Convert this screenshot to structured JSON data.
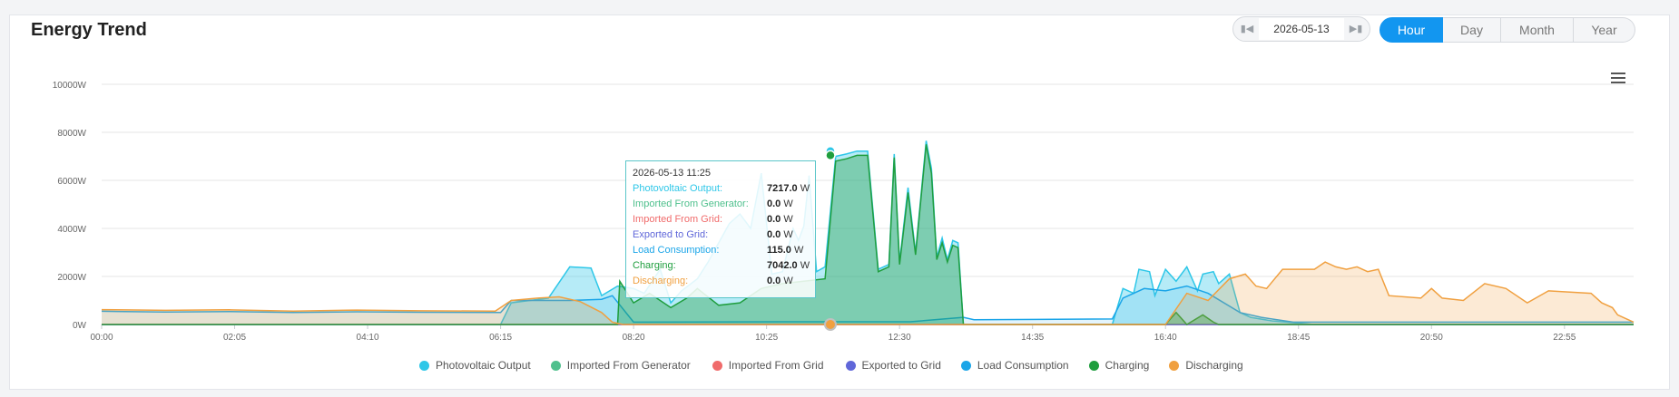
{
  "title": "Energy Trend",
  "date_picker": {
    "value": "2026-05-13",
    "prev_icon": "step-backward-icon",
    "next_icon": "step-forward-icon"
  },
  "ranges": [
    "Hour",
    "Day",
    "Month",
    "Year"
  ],
  "active_range": "Hour",
  "menu_icon": "hamburger-menu-icon",
  "chart_data": {
    "type": "area",
    "x_tick_labels": [
      "00:00",
      "02:05",
      "04:10",
      "06:15",
      "08:20",
      "10:25",
      "12:30",
      "14:35",
      "16:40",
      "18:45",
      "20:50",
      "22:55"
    ],
    "y_tick_labels": [
      "0W",
      "2000W",
      "4000W",
      "6000W",
      "8000W",
      "10000W"
    ],
    "ylim": [
      0,
      10000
    ],
    "xlim_minutes": [
      0,
      1440
    ],
    "grid": true,
    "legend_position": "bottom",
    "series": [
      {
        "name": "Photovoltaic Output",
        "color": "#2ec7e8",
        "points": [
          [
            0,
            0
          ],
          [
            375,
            0
          ],
          [
            385,
            900
          ],
          [
            420,
            1100
          ],
          [
            440,
            2400
          ],
          [
            460,
            2350
          ],
          [
            470,
            1200
          ],
          [
            485,
            1600
          ],
          [
            500,
            1500
          ],
          [
            510,
            1300
          ],
          [
            525,
            2300
          ],
          [
            535,
            900
          ],
          [
            545,
            1400
          ],
          [
            560,
            1900
          ],
          [
            570,
            2600
          ],
          [
            590,
            4200
          ],
          [
            600,
            4600
          ],
          [
            610,
            4000
          ],
          [
            620,
            6300
          ],
          [
            630,
            2100
          ],
          [
            640,
            2200
          ],
          [
            650,
            4000
          ],
          [
            655,
            3500
          ],
          [
            660,
            4100
          ],
          [
            665,
            6200
          ],
          [
            672,
            2200
          ],
          [
            680,
            2400
          ],
          [
            690,
            7000
          ],
          [
            700,
            7100
          ],
          [
            710,
            7217
          ],
          [
            720,
            7217
          ],
          [
            730,
            2300
          ],
          [
            740,
            2500
          ],
          [
            745,
            7100
          ],
          [
            750,
            2600
          ],
          [
            758,
            5700
          ],
          [
            765,
            3000
          ],
          [
            775,
            7650
          ],
          [
            780,
            6500
          ],
          [
            785,
            2800
          ],
          [
            790,
            3600
          ],
          [
            795,
            2700
          ],
          [
            800,
            3500
          ],
          [
            805,
            3400
          ],
          [
            810,
            0
          ],
          [
            950,
            0
          ],
          [
            960,
            1500
          ],
          [
            970,
            1300
          ],
          [
            975,
            2300
          ],
          [
            985,
            2200
          ],
          [
            990,
            1200
          ],
          [
            1000,
            2300
          ],
          [
            1010,
            1800
          ],
          [
            1020,
            2400
          ],
          [
            1030,
            1400
          ],
          [
            1035,
            2100
          ],
          [
            1045,
            2200
          ],
          [
            1050,
            1700
          ],
          [
            1060,
            2100
          ],
          [
            1070,
            500
          ],
          [
            1080,
            300
          ],
          [
            1100,
            150
          ],
          [
            1140,
            0
          ],
          [
            1440,
            0
          ]
        ]
      },
      {
        "name": "Imported From Generator",
        "color": "#4fc08d",
        "points": [
          [
            0,
            0
          ],
          [
            1440,
            0
          ]
        ]
      },
      {
        "name": "Imported From Grid",
        "color": "#f06b6b",
        "points": [
          [
            0,
            0
          ],
          [
            1440,
            0
          ]
        ]
      },
      {
        "name": "Exported to Grid",
        "color": "#6067d9",
        "points": [
          [
            0,
            0
          ],
          [
            1440,
            0
          ]
        ]
      },
      {
        "name": "Load Consumption",
        "color": "#1ba5e8",
        "points": [
          [
            0,
            550
          ],
          [
            60,
            520
          ],
          [
            120,
            540
          ],
          [
            180,
            500
          ],
          [
            240,
            530
          ],
          [
            300,
            510
          ],
          [
            375,
            500
          ],
          [
            385,
            1000
          ],
          [
            410,
            1000
          ],
          [
            440,
            1000
          ],
          [
            470,
            1050
          ],
          [
            480,
            1200
          ],
          [
            500,
            100
          ],
          [
            640,
            115
          ],
          [
            700,
            115
          ],
          [
            760,
            115
          ],
          [
            810,
            300
          ],
          [
            820,
            200
          ],
          [
            950,
            230
          ],
          [
            960,
            1100
          ],
          [
            980,
            1500
          ],
          [
            1000,
            1400
          ],
          [
            1020,
            1600
          ],
          [
            1040,
            1300
          ],
          [
            1070,
            500
          ],
          [
            1090,
            300
          ],
          [
            1120,
            100
          ],
          [
            1440,
            100
          ]
        ]
      },
      {
        "name": "Charging",
        "color": "#1f9e3e",
        "points": [
          [
            0,
            0
          ],
          [
            485,
            0
          ],
          [
            487,
            1800
          ],
          [
            500,
            900
          ],
          [
            515,
            1300
          ],
          [
            525,
            1000
          ],
          [
            535,
            700
          ],
          [
            550,
            1100
          ],
          [
            560,
            1500
          ],
          [
            580,
            800
          ],
          [
            600,
            900
          ],
          [
            620,
            1500
          ],
          [
            640,
            1700
          ],
          [
            660,
            1800
          ],
          [
            680,
            1900
          ],
          [
            690,
            6800
          ],
          [
            700,
            6900
          ],
          [
            710,
            7042
          ],
          [
            720,
            7042
          ],
          [
            730,
            2200
          ],
          [
            740,
            2400
          ],
          [
            745,
            6950
          ],
          [
            750,
            2500
          ],
          [
            758,
            5500
          ],
          [
            765,
            2900
          ],
          [
            775,
            7500
          ],
          [
            780,
            6300
          ],
          [
            785,
            2700
          ],
          [
            790,
            3400
          ],
          [
            795,
            2600
          ],
          [
            800,
            3300
          ],
          [
            805,
            3200
          ],
          [
            810,
            0
          ],
          [
            1000,
            0
          ],
          [
            1010,
            500
          ],
          [
            1020,
            0
          ],
          [
            1035,
            400
          ],
          [
            1045,
            100
          ],
          [
            1050,
            0
          ],
          [
            1440,
            0
          ]
        ]
      },
      {
        "name": "Discharging",
        "color": "#f0a040",
        "points": [
          [
            0,
            620
          ],
          [
            60,
            590
          ],
          [
            120,
            610
          ],
          [
            180,
            560
          ],
          [
            240,
            600
          ],
          [
            300,
            570
          ],
          [
            370,
            560
          ],
          [
            385,
            1000
          ],
          [
            410,
            1100
          ],
          [
            430,
            1150
          ],
          [
            450,
            950
          ],
          [
            470,
            500
          ],
          [
            480,
            100
          ],
          [
            490,
            0
          ],
          [
            1000,
            0
          ],
          [
            1020,
            1300
          ],
          [
            1040,
            1000
          ],
          [
            1060,
            1900
          ],
          [
            1075,
            2100
          ],
          [
            1085,
            1600
          ],
          [
            1095,
            1500
          ],
          [
            1110,
            2300
          ],
          [
            1130,
            2300
          ],
          [
            1140,
            2300
          ],
          [
            1150,
            2600
          ],
          [
            1160,
            2400
          ],
          [
            1170,
            2300
          ],
          [
            1180,
            2400
          ],
          [
            1190,
            2200
          ],
          [
            1200,
            2300
          ],
          [
            1210,
            1200
          ],
          [
            1240,
            1100
          ],
          [
            1250,
            1500
          ],
          [
            1260,
            1100
          ],
          [
            1280,
            1000
          ],
          [
            1300,
            1700
          ],
          [
            1320,
            1500
          ],
          [
            1340,
            900
          ],
          [
            1360,
            1400
          ],
          [
            1380,
            1350
          ],
          [
            1400,
            1300
          ],
          [
            1410,
            900
          ],
          [
            1420,
            700
          ],
          [
            1425,
            400
          ],
          [
            1440,
            100
          ]
        ]
      }
    ]
  },
  "tooltip": {
    "time": "2026-05-13 11:25",
    "rows": [
      {
        "label": "Photovoltaic Output:",
        "value": "7217.0",
        "unit": "W",
        "color": "#2ec7e8"
      },
      {
        "label": "Imported From Generator:",
        "value": "0.0",
        "unit": "W",
        "color": "#4fc08d"
      },
      {
        "label": "Imported From Grid:",
        "value": "0.0",
        "unit": "W",
        "color": "#f06b6b"
      },
      {
        "label": "Exported to Grid:",
        "value": "0.0",
        "unit": "W",
        "color": "#6067d9"
      },
      {
        "label": "Load Consumption:",
        "value": "115.0",
        "unit": "W",
        "color": "#1ba5e8"
      },
      {
        "label": "Charging:",
        "value": "7042.0",
        "unit": "W",
        "color": "#1f9e3e"
      },
      {
        "label": "Discharging:",
        "value": "0.0",
        "unit": "W",
        "color": "#f0a040"
      }
    ]
  }
}
